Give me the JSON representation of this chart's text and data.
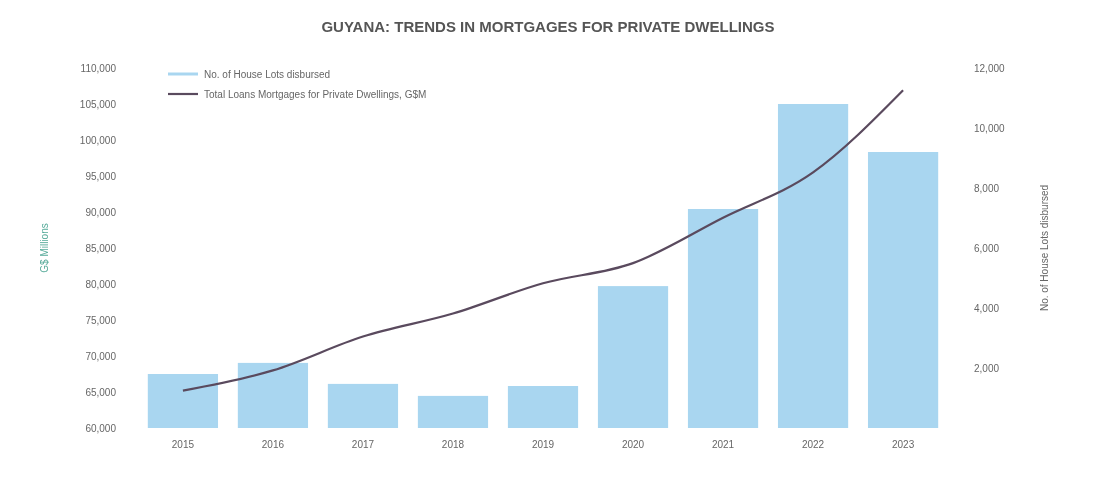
{
  "chart_data": {
    "type": "bar",
    "title": "GUYANA: TRENDS IN MORTGAGES FOR PRIVATE DWELLINGS",
    "categories": [
      "2015",
      "2016",
      "2017",
      "2018",
      "2019",
      "2020",
      "2021",
      "2022",
      "2023"
    ],
    "series": [
      {
        "name": "No. of House Lots disbursed",
        "axis": "y2",
        "color": "#a9d6f0",
        "values": [
          1800,
          2170,
          1470,
          1070,
          1400,
          4730,
          7300,
          10800,
          9200
        ]
      },
      {
        "name": "Total Loans Mortgages for Private Dwellings, G$M",
        "type": "line",
        "color": "#5a4a5e",
        "values": [
          65200,
          68000,
          72700,
          75900,
          80100,
          82900,
          89200,
          95500,
          106900
        ]
      }
    ],
    "ylabel": "G$ Millions",
    "y2label": "No. of House Lots disbursed",
    "ylim": [
      60000,
      110000
    ],
    "yticks": [
      {
        "value": 60000,
        "label": "60,000"
      },
      {
        "value": 65000,
        "label": "65,000"
      },
      {
        "value": 70000,
        "label": "70,000"
      },
      {
        "value": 75000,
        "label": "75,000"
      },
      {
        "value": 80000,
        "label": "80,000"
      },
      {
        "value": 85000,
        "label": "85,000"
      },
      {
        "value": 90000,
        "label": "90,000"
      },
      {
        "value": 95000,
        "label": "95,000"
      },
      {
        "value": 100000,
        "label": "100,000"
      },
      {
        "value": 105000,
        "label": "105,000"
      },
      {
        "value": 110000,
        "label": "110,000"
      }
    ],
    "y2lim": [
      0,
      12000
    ],
    "y2ticks": [
      {
        "value": 2000,
        "label": "2,000"
      },
      {
        "value": 4000,
        "label": "4,000"
      },
      {
        "value": 6000,
        "label": "6,000"
      },
      {
        "value": 8000,
        "label": "8,000"
      },
      {
        "value": 10000,
        "label": "10,000"
      },
      {
        "value": 12000,
        "label": "12,000"
      }
    ],
    "legend": "top left",
    "grid": false
  }
}
